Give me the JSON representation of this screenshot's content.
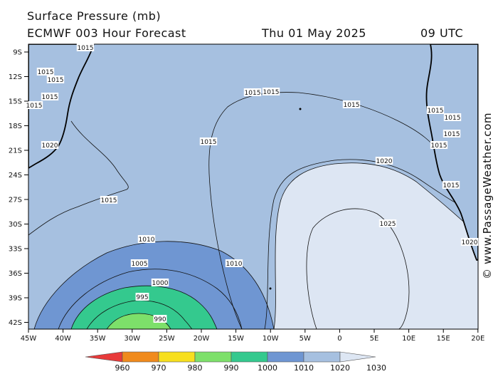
{
  "header": {
    "title": "Surface Pressure (mb)",
    "model_line": "ECMWF 003 Hour Forecast",
    "date": "Thu 01 May 2025",
    "time": "09 UTC"
  },
  "credit": "© www.PassageWeather.com",
  "axes": {
    "lat_labels": [
      "9S",
      "12S",
      "15S",
      "18S",
      "21S",
      "24S",
      "27S",
      "30S",
      "33S",
      "36S",
      "39S",
      "42S"
    ],
    "lon_labels": [
      "45W",
      "40W",
      "35W",
      "30W",
      "25W",
      "20W",
      "15W",
      "10W",
      "5W",
      "0",
      "5E",
      "10E",
      "15E",
      "20E"
    ]
  },
  "isobar_labels": [
    {
      "text": "1015"
    },
    {
      "text": "1015"
    },
    {
      "text": "1015"
    },
    {
      "text": "1015"
    },
    {
      "text": "1015"
    },
    {
      "text": "1015"
    },
    {
      "text": "1015"
    },
    {
      "text": "1015"
    },
    {
      "text": "1015"
    },
    {
      "text": "1015"
    },
    {
      "text": "1020"
    },
    {
      "text": "1020"
    },
    {
      "text": "1025"
    },
    {
      "text": "1010"
    },
    {
      "text": "1010"
    },
    {
      "text": "1005"
    },
    {
      "text": "1000"
    },
    {
      "text": "995"
    },
    {
      "text": "990"
    },
    {
      "text": "1015"
    },
    {
      "text": "1015"
    },
    {
      "text": "1015"
    },
    {
      "text": "1015"
    },
    {
      "text": "1015"
    },
    {
      "text": "1020"
    }
  ],
  "legend": {
    "labels": [
      "960",
      "970",
      "980",
      "990",
      "1000",
      "1010",
      "1020",
      "1030"
    ],
    "colors": [
      "#e83a3a",
      "#f08a1c",
      "#f7df1e",
      "#7de06a",
      "#34c98e",
      "#6f96d2",
      "#a6c0e0",
      "#dde6f3"
    ]
  },
  "colors": {
    "band_1010_1020": "#a6c0e0",
    "band_1020_1030": "#dde6f3",
    "band_1000_1010": "#6f96d2",
    "band_990_1000": "#34c98e",
    "band_980_990": "#7de06a"
  }
}
